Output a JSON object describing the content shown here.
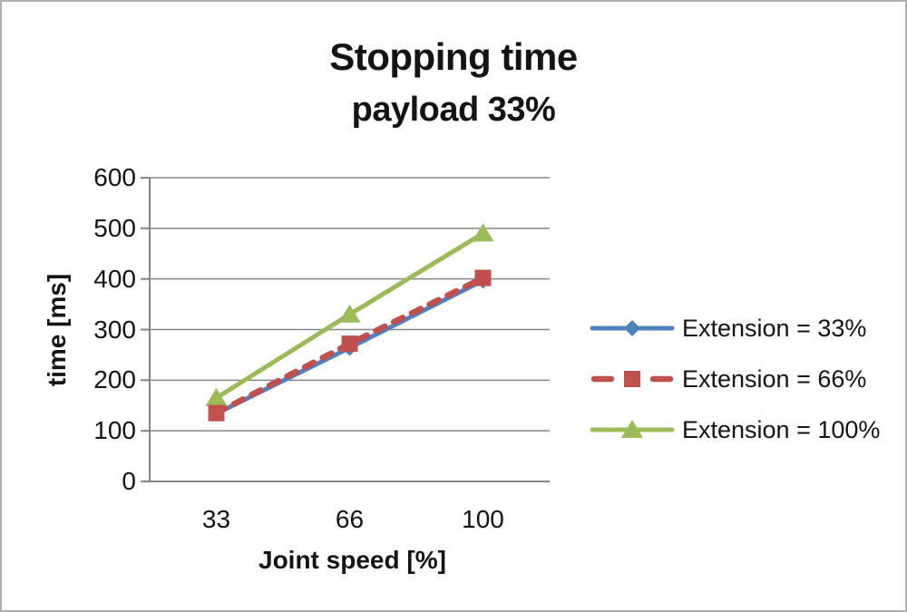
{
  "window": {
    "background": "#ffffff",
    "border_color": "#b0b0b0"
  },
  "chart_data": {
    "type": "line",
    "title": "Stopping time",
    "subtitle": "payload 33%",
    "xlabel": "Joint speed [%]",
    "ylabel": "time [ms]",
    "x_categories": [
      "33",
      "66",
      "100"
    ],
    "series": [
      {
        "name": "Extension = 33%",
        "values": [
          134,
          264,
          397
        ],
        "color": "#4F81BD",
        "marker": "diamond",
        "line_style": "solid"
      },
      {
        "name": "Extension = 66%",
        "values": [
          135,
          272,
          402
        ],
        "color": "#C0504D",
        "marker": "square",
        "line_style": "dashed"
      },
      {
        "name": "Extension = 100%",
        "values": [
          165,
          330,
          490
        ],
        "color": "#9BBB59",
        "marker": "triangle",
        "line_style": "solid"
      }
    ],
    "ylim": [
      0,
      600
    ],
    "ytick_step": 100,
    "yticks": [
      "0",
      "100",
      "200",
      "300",
      "400",
      "500",
      "600"
    ],
    "grid": true,
    "legend_position": "right-middle",
    "gridline_color": "#868686",
    "axis_color": "#868686",
    "text_color": "#141414"
  }
}
